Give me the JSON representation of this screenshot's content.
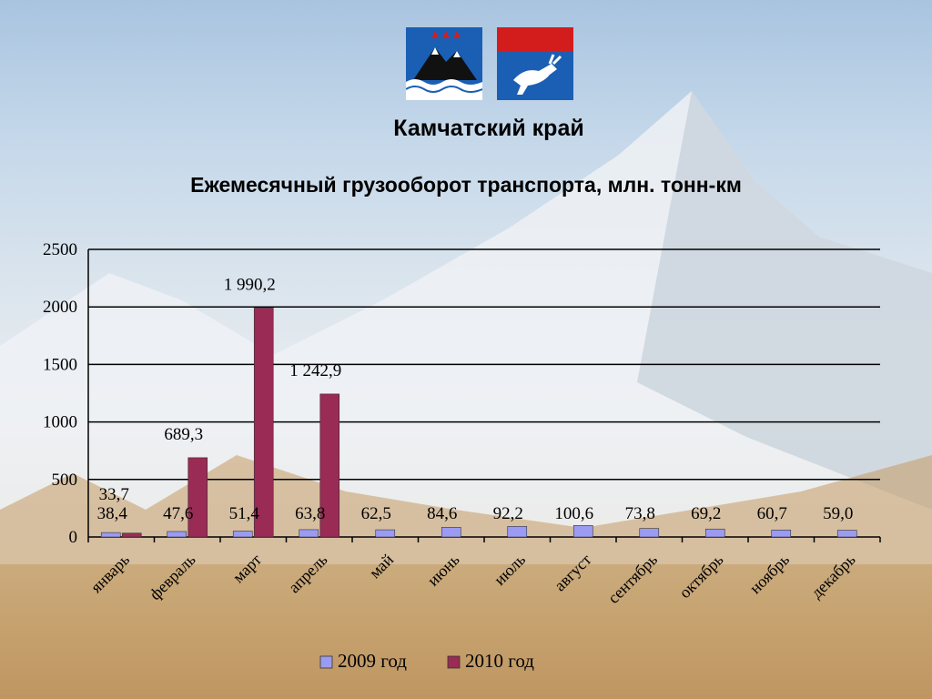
{
  "header": {
    "region": "Камчатский край"
  },
  "colors": {
    "series_2009": "#9b9bf3",
    "series_2010": "#9a2b54"
  },
  "emblems": [
    "kamchatka-coat-of-arms",
    "koryak-okrug-coat-of-arms"
  ],
  "chart_data": {
    "type": "bar",
    "title": "Ежемесячный грузооборот транспорта, млн. тонн-км",
    "xlabel": "",
    "ylabel": "",
    "ylim": [
      0,
      2500
    ],
    "yticks": [
      "0",
      "500",
      "1000",
      "1500",
      "2000",
      "2500"
    ],
    "grid": true,
    "legend_position": "bottom",
    "categories": [
      "январь",
      "февраль",
      "март",
      "апрель",
      "май",
      "июнь",
      "июль",
      "август",
      "сентябрь",
      "октябрь",
      "ноябрь",
      "декабрь"
    ],
    "series": [
      {
        "name": "2009 год",
        "values": [
          38.4,
          47.6,
          51.4,
          63.8,
          62.5,
          84.6,
          92.2,
          100.6,
          73.8,
          69.2,
          60.7,
          59.0
        ],
        "labels": [
          "38,4",
          "47,6",
          "51,4",
          "63,8",
          "62,5",
          "84,6",
          "92,2",
          "100,6",
          "73,8",
          "69,2",
          "60,7",
          "59,0"
        ]
      },
      {
        "name": "2010 год",
        "values": [
          33.7,
          689.3,
          1990.2,
          1242.9,
          null,
          null,
          null,
          null,
          null,
          null,
          null,
          null
        ],
        "labels": [
          "33,7",
          "689,3",
          "1 990,2",
          "1 242,9",
          "",
          "",
          "",
          "",
          "",
          "",
          "",
          ""
        ]
      }
    ]
  }
}
